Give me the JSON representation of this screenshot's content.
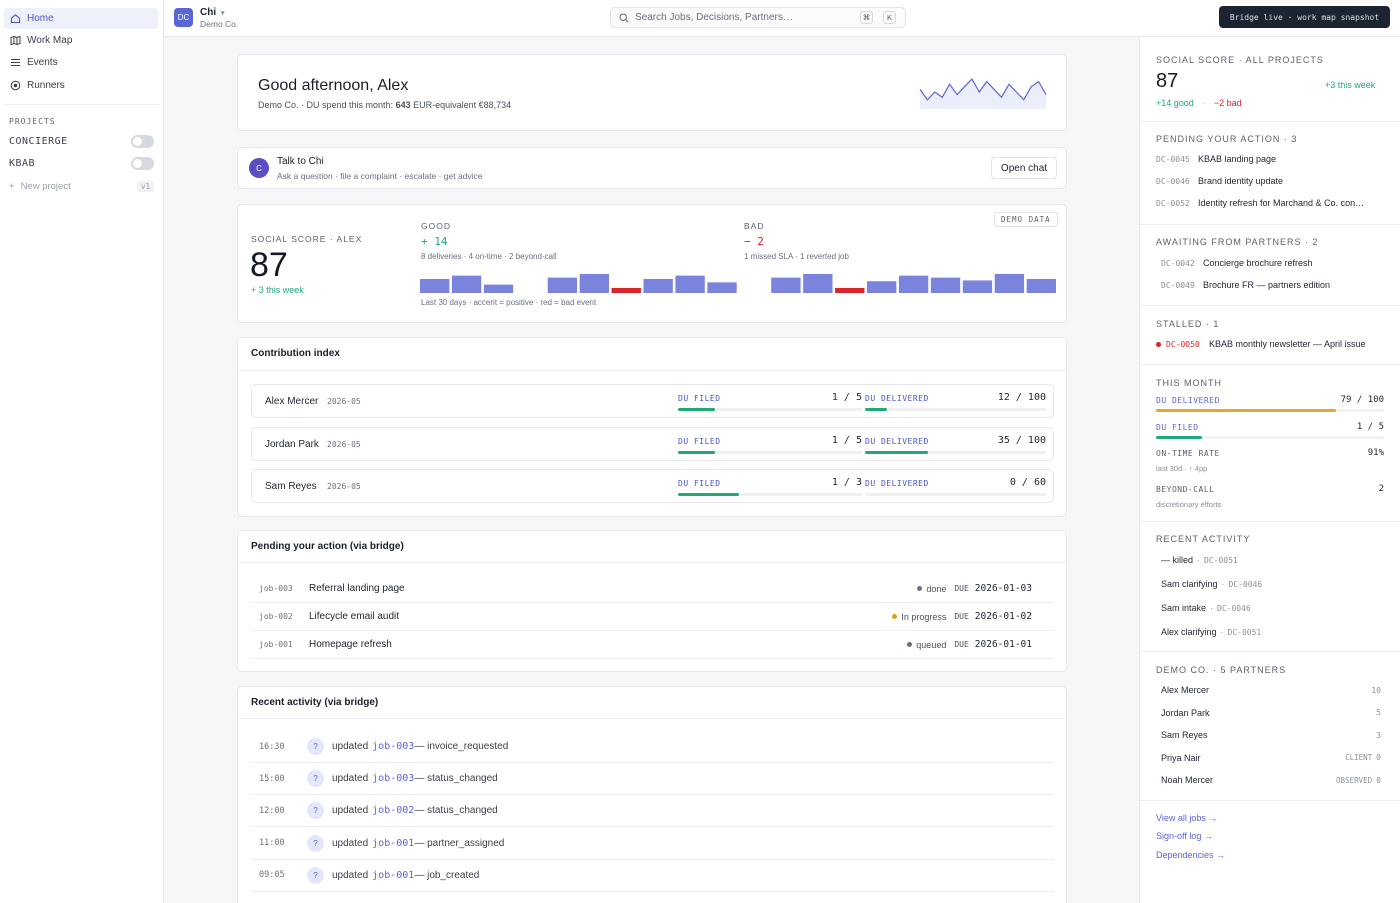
{
  "sidebar": {
    "nav": [
      {
        "label": "Home",
        "icon": "home-icon",
        "active": true
      },
      {
        "label": "Work Map",
        "icon": "map-icon"
      },
      {
        "label": "Events",
        "icon": "list-icon"
      },
      {
        "label": "Runners",
        "icon": "runner-icon"
      }
    ],
    "projects_heading": "PROJECTS",
    "projects": [
      {
        "label": "CONCIERGE"
      },
      {
        "label": "KBAB"
      }
    ],
    "new_project": "New project",
    "new_project_badge": "v1"
  },
  "topbar": {
    "logo": "DC",
    "app": "Chi",
    "org": "Demo Co.",
    "search_placeholder": "Search Jobs, Decisions, Partners…",
    "kbd1": "⌘",
    "kbd2": "K",
    "bridge_badge": "Bridge live · work map snapshot"
  },
  "greeting": {
    "title": "Good afternoon, Alex",
    "sub_prefix": "Demo Co. · DU spend this month: ",
    "sub_amount": "643",
    "sub_suffix": " EUR-equivalent €88,734",
    "sparkline": [
      12,
      4,
      10,
      6,
      16,
      8,
      14,
      20,
      10,
      18,
      12,
      6,
      16,
      10,
      4,
      14,
      18,
      8
    ]
  },
  "talk": {
    "avatar": "C",
    "title": "Talk to Chi",
    "sub": "Ask a question · file a complaint · escalate · get advice",
    "button": "Open chat"
  },
  "social": {
    "label": "SOCIAL SCORE · ALEX",
    "score": "87",
    "week": "+ 3 this week",
    "demo": "DEMO DATA",
    "good_label": "GOOD",
    "good_value": "+ 14",
    "good_sub": "8 deliveries · 4 on-time · 2 beyond-call",
    "bad_label": "BAD",
    "bad_value": "− 2",
    "bad_sub": "1 missed SLA · 1 reverted job",
    "caption": "Last 30 days · accent = positive · red = bad event",
    "bars": [
      {
        "v": 0.5,
        "bad": false
      },
      {
        "v": 0.62,
        "bad": false
      },
      {
        "v": 0.3,
        "bad": false
      },
      {
        "v": 0,
        "bad": false
      },
      {
        "v": 0.55,
        "bad": false
      },
      {
        "v": 0.68,
        "bad": false
      },
      {
        "v": 0.18,
        "bad": true
      },
      {
        "v": 0.5,
        "bad": false
      },
      {
        "v": 0.62,
        "bad": false
      },
      {
        "v": 0.38,
        "bad": false
      },
      {
        "v": 0,
        "bad": false
      },
      {
        "v": 0.55,
        "bad": false
      },
      {
        "v": 0.68,
        "bad": false
      },
      {
        "v": 0.18,
        "bad": true
      },
      {
        "v": 0.42,
        "bad": false
      },
      {
        "v": 0.62,
        "bad": false
      },
      {
        "v": 0.55,
        "bad": false
      },
      {
        "v": 0.45,
        "bad": false
      },
      {
        "v": 0.68,
        "bad": false
      },
      {
        "v": 0.5,
        "bad": false
      }
    ]
  },
  "contribution": {
    "title": "Contribution index",
    "filed_label": "DU FILED",
    "delivered_label": "DU DELIVERED",
    "rows": [
      {
        "name": "Alex Mercer",
        "period": "2026-05",
        "filed": "1 / 5",
        "filed_frac": 0.2,
        "delivered": "12 / 100",
        "delivered_frac": 0.12
      },
      {
        "name": "Jordan Park",
        "period": "2026-05",
        "filed": "1 / 5",
        "filed_frac": 0.2,
        "delivered": "35 / 100",
        "delivered_frac": 0.35
      },
      {
        "name": "Sam Reyes",
        "period": "2026-05",
        "filed": "1 / 3",
        "filed_frac": 0.33,
        "delivered": "0 / 60",
        "delivered_frac": 0
      }
    ]
  },
  "pending": {
    "title": "Pending your action (via bridge)",
    "due_label": "DUE",
    "rows": [
      {
        "id": "job-003",
        "name": "Referral landing page",
        "status": "done",
        "dot": "#6b7180",
        "due": "2026-01-03"
      },
      {
        "id": "job-002",
        "name": "Lifecycle email audit",
        "status": "In progress",
        "dot": "#d9a21b",
        "due": "2026-01-02"
      },
      {
        "id": "job-001",
        "name": "Homepage refresh",
        "status": "queued",
        "dot": "#6b7180",
        "due": "2026-01-01"
      }
    ]
  },
  "activity": {
    "title": "Recent activity (via bridge)",
    "rows": [
      {
        "time": "16:30",
        "verb": "updated",
        "job": "job-003",
        "event": " — invoice_requested"
      },
      {
        "time": "15:00",
        "verb": "updated",
        "job": "job-003",
        "event": " — status_changed"
      },
      {
        "time": "12:00",
        "verb": "updated",
        "job": "job-002",
        "event": " — status_changed"
      },
      {
        "time": "11:00",
        "verb": "updated",
        "job": "job-001",
        "event": " — partner_assigned"
      },
      {
        "time": "09:05",
        "verb": "updated",
        "job": "job-001",
        "event": " — job_created"
      }
    ]
  },
  "rpanel": {
    "social_title": "SOCIAL SCORE · ALL PROJECTS",
    "social_score": "87",
    "social_week": "+3 this week",
    "social_good": "+14 good",
    "social_sep": "·",
    "social_bad": "−2 bad",
    "pending_title": "PENDING YOUR ACTION · 3",
    "pending": [
      {
        "id": "DC-0045",
        "name": "KBAB landing page"
      },
      {
        "id": "DC-0046",
        "name": "Brand identity update"
      },
      {
        "id": "DC-0052",
        "name": "Identity refresh for Marchand & Co. con…"
      }
    ],
    "awaiting_title": "AWAITING FROM PARTNERS · 2",
    "awaiting": [
      {
        "id": "DC-0042",
        "name": "Concierge brochure refresh"
      },
      {
        "id": "DC-0049",
        "name": "Brochure FR — partners edition"
      }
    ],
    "stalled_title": "STALLED · 1",
    "stalled": {
      "id": "DC-0050",
      "name": "KBAB monthly newsletter — April issue"
    },
    "month_title": "THIS MONTH",
    "du_delivered_label": "DU DELIVERED",
    "du_delivered": "79 / 100",
    "du_delivered_frac": 0.79,
    "du_filed_label": "DU FILED",
    "du_filed": "1 / 5",
    "du_filed_frac": 0.2,
    "ontime_label": "ON-TIME RATE",
    "ontime_value": "91%",
    "ontime_sub": "last 30d · ↑ 4pp",
    "beyond_label": "BEYOND-CALL",
    "beyond_value": "2",
    "beyond_sub": "discretionary efforts",
    "recent_title": "RECENT ACTIVITY",
    "recent": [
      {
        "who": "— killed",
        "id": "DC-0051"
      },
      {
        "who": "Sam clarifying",
        "id": "DC-0046"
      },
      {
        "who": "Sam intake",
        "id": "DC-0046"
      },
      {
        "who": "Alex clarifying",
        "id": "DC-0051"
      }
    ],
    "partners_title": "DEMO CO. · 5 PARTNERS",
    "partners": [
      {
        "name": "Alex Mercer",
        "tag": "",
        "value": "10"
      },
      {
        "name": "Jordan Park",
        "tag": "",
        "value": "5"
      },
      {
        "name": "Sam Reyes",
        "tag": "",
        "value": "3"
      },
      {
        "name": "Priya Nair",
        "tag": "CLIENT",
        "value": "0"
      },
      {
        "name": "Noah Mercer",
        "tag": "OBSERVED",
        "value": "0"
      }
    ],
    "links": [
      "View all jobs →",
      "Sign-off log →",
      "Dependencies →"
    ]
  },
  "colors": {
    "accent": "#5b66d6",
    "bar": "#7b84dc",
    "bad": "#d8252b",
    "good": "#20a977",
    "progress_orange": "#e3a82b"
  }
}
